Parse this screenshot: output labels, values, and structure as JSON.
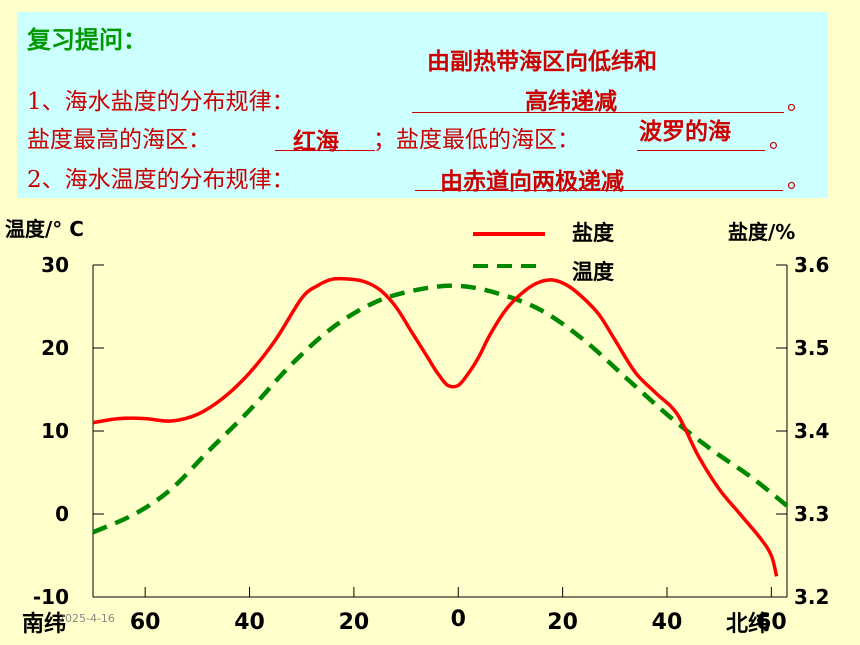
{
  "review": {
    "heading": "复习提问：",
    "q1_text": "1、海水盐度的分布规律：",
    "q1_answer_line1": "由副热带海区向低纬和",
    "q1_answer_line2": "高纬递减",
    "q1_end": "。",
    "q1b_text_a": "盐度最高的海区：",
    "q1b_answer_a": "红海",
    "q1b_text_b": "；盐度最低的海区：",
    "q1b_answer_b": "波罗的海",
    "q1b_end": "。",
    "q2_text": "2、海水温度的分布规律：",
    "q2_answer": "由赤道向两极递减",
    "q2_end": "。"
  },
  "date_stamp": "2025-4-16",
  "colors": {
    "salinity": "#ff0000",
    "temperature": "#008800",
    "answer": "#cc0000",
    "heading": "#009900"
  },
  "chart_data": {
    "type": "line",
    "title": "",
    "xlabel_left": "南纬",
    "xlabel_right": "北纬",
    "ylabel_left": "温度/° C",
    "ylabel_right": "盐度/%",
    "x_ticks": [
      "60",
      "40",
      "20",
      "0",
      "20",
      "40",
      "60"
    ],
    "x_tick_values": [
      -60,
      -40,
      -20,
      0,
      20,
      40,
      60
    ],
    "xlim": [
      -70,
      63
    ],
    "y_left_ticks": [
      "30",
      "20",
      "10",
      "0",
      "-10"
    ],
    "y_left_tick_values": [
      30,
      20,
      10,
      0,
      -10
    ],
    "ylim_left": [
      -10,
      30
    ],
    "y_right_ticks": [
      "3.6",
      "3.5",
      "3.4",
      "3.3",
      "3.2"
    ],
    "y_right_tick_values": [
      3.6,
      3.5,
      3.4,
      3.3,
      3.2
    ],
    "ylim_right": [
      3.2,
      3.6
    ],
    "legend": [
      {
        "name": "盐度",
        "style": "solid"
      },
      {
        "name": "温度",
        "style": "dashed"
      }
    ],
    "legend_position": "top-right",
    "series": [
      {
        "name": "盐度",
        "axis": "right",
        "x": [
          -70,
          -65,
          -60,
          -55,
          -50,
          -45,
          -40,
          -35,
          -30,
          -27,
          -24,
          -21,
          -18,
          -15,
          -12,
          -9,
          -6,
          -4,
          -2,
          0,
          2,
          4,
          6,
          9,
          12,
          15,
          18,
          21,
          24,
          27,
          30,
          34,
          38,
          42,
          46,
          50,
          54,
          58,
          60,
          61
        ],
        "values": [
          3.41,
          3.415,
          3.415,
          3.412,
          3.42,
          3.44,
          3.47,
          3.51,
          3.56,
          3.575,
          3.583,
          3.583,
          3.58,
          3.57,
          3.55,
          3.52,
          3.49,
          3.47,
          3.455,
          3.455,
          3.47,
          3.49,
          3.515,
          3.545,
          3.565,
          3.578,
          3.582,
          3.575,
          3.56,
          3.54,
          3.51,
          3.47,
          3.445,
          3.42,
          3.37,
          3.33,
          3.3,
          3.27,
          3.25,
          3.225
        ]
      },
      {
        "name": "温度",
        "axis": "left",
        "x": [
          -70,
          -62,
          -55,
          -48,
          -40,
          -32,
          -24,
          -16,
          -8,
          0,
          8,
          16,
          24,
          32,
          40,
          48,
          56,
          63
        ],
        "values": [
          -2.2,
          0,
          3,
          7.5,
          12.5,
          18,
          22.5,
          25.5,
          27,
          27.5,
          26.5,
          24.5,
          21,
          16.5,
          12,
          8,
          4.5,
          1
        ]
      }
    ]
  }
}
